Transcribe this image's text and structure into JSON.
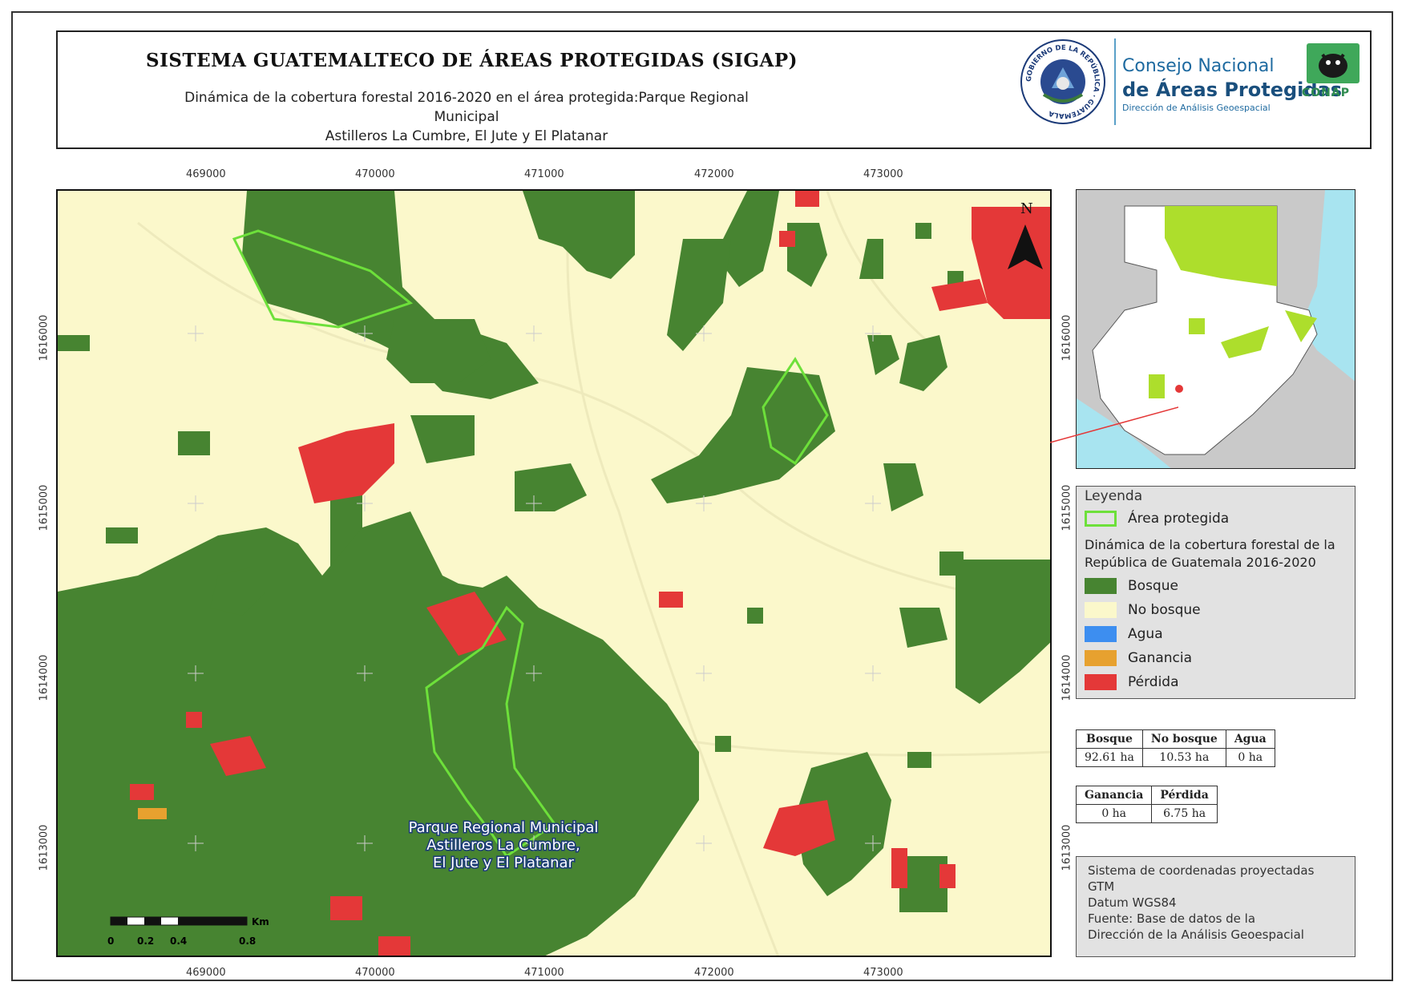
{
  "header": {
    "title": "SISTEMA GUATEMALTECO DE ÁREAS PROTEGIDAS (SIGAP)",
    "subtitle_line1": "Dinámica de la cobertura forestal 2016-2020 en el área protegida:Parque Regional Municipal",
    "subtitle_line2": "Astilleros La Cumbre, El Jute y El Platanar",
    "seal_text": "GOBIERNO DE LA REPÚBLICA · GUATEMALA",
    "conap_line1": "Consejo Nacional",
    "conap_line2": "de Áreas Protegidas",
    "conap_line3": "Dirección de Análisis Geoespacial",
    "conap_logo": "CONAP"
  },
  "map": {
    "x_ticks": [
      "469000",
      "470000",
      "471000",
      "472000",
      "473000"
    ],
    "y_ticks": [
      "1616000",
      "1615000",
      "1614000",
      "1613000"
    ],
    "north_label": "N",
    "area_label_line1": "Parque Regional Municipal",
    "area_label_line2": "Astilleros La Cumbre,",
    "area_label_line3": "El Jute y El Platanar",
    "scale_unit": "Km",
    "scale_labels": [
      "0",
      "0.2",
      "0.4",
      "0.8"
    ]
  },
  "legend": {
    "title": "Leyenda",
    "protected_area": "Área protegida",
    "dynamics_title": "Dinámica de la cobertura forestal de la República de Guatemala 2016-2020",
    "items": [
      {
        "label": "Bosque",
        "color": "#478431"
      },
      {
        "label": "No bosque",
        "color": "#fbf8cb"
      },
      {
        "label": "Agua",
        "color": "#3d8ef0"
      },
      {
        "label": "Ganancia",
        "color": "#e7a12f"
      },
      {
        "label": "Pérdida",
        "color": "#e43838"
      }
    ],
    "protected_color": "#6de03a"
  },
  "stats1": {
    "headers": [
      "Bosque",
      "No bosque",
      "Agua"
    ],
    "values": [
      "92.61 ha",
      "10.53 ha",
      "0 ha"
    ]
  },
  "stats2": {
    "headers": [
      "Ganancia",
      "Pérdida"
    ],
    "values": [
      "0 ha",
      "6.75 ha"
    ]
  },
  "meta": {
    "lines": [
      "Sistema de coordenadas proyectadas",
      "GTM",
      "Datum WGS84",
      "Fuente: Base de datos de la",
      "Dirección de la Análisis Geoespacial"
    ]
  }
}
